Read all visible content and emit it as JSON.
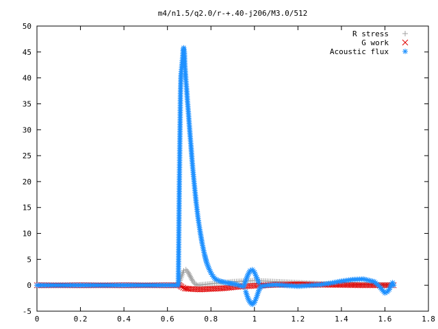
{
  "chart_data": {
    "type": "scatter",
    "title": "m4/n1.5/q2.0/r-+.40-j206/M3.0/512",
    "xlabel": "",
    "ylabel": "",
    "xlim": [
      0,
      1.8
    ],
    "ylim": [
      -5,
      50
    ],
    "xticks": [
      "0",
      "0.2",
      "0.4",
      "0.6",
      "0.8",
      "1",
      "1.2",
      "1.4",
      "1.6",
      "1.8"
    ],
    "yticks": [
      "-5",
      "0",
      "5",
      "10",
      "15",
      "20",
      "25",
      "30",
      "35",
      "40",
      "45",
      "50"
    ],
    "grid": false,
    "legend_position": "top-right",
    "series": [
      {
        "name": "R stress",
        "marker": "plus",
        "color": "#a0a0a0",
        "points": [
          [
            0.0,
            0.0
          ],
          [
            0.1,
            0.0
          ],
          [
            0.2,
            0.0
          ],
          [
            0.3,
            0.0
          ],
          [
            0.4,
            0.0
          ],
          [
            0.5,
            0.0
          ],
          [
            0.6,
            0.0
          ],
          [
            0.64,
            0.0
          ],
          [
            0.655,
            0.6
          ],
          [
            0.665,
            1.8
          ],
          [
            0.675,
            2.8
          ],
          [
            0.685,
            3.0
          ],
          [
            0.695,
            2.5
          ],
          [
            0.705,
            1.7
          ],
          [
            0.715,
            0.9
          ],
          [
            0.725,
            0.3
          ],
          [
            0.74,
            0.0
          ],
          [
            0.76,
            0.1
          ],
          [
            0.8,
            0.3
          ],
          [
            0.85,
            0.5
          ],
          [
            0.9,
            0.7
          ],
          [
            0.95,
            0.8
          ],
          [
            1.0,
            0.9
          ],
          [
            1.05,
            0.8
          ],
          [
            1.1,
            0.7
          ],
          [
            1.2,
            0.5
          ],
          [
            1.3,
            0.3
          ],
          [
            1.4,
            0.2
          ],
          [
            1.5,
            0.1
          ],
          [
            1.6,
            0.05
          ],
          [
            1.64,
            0.0
          ]
        ]
      },
      {
        "name": "G work",
        "marker": "cross",
        "color": "#e00000",
        "points": [
          [
            0.0,
            0.0
          ],
          [
            0.2,
            0.0
          ],
          [
            0.4,
            0.0
          ],
          [
            0.6,
            0.0
          ],
          [
            0.655,
            0.0
          ],
          [
            0.665,
            -0.3
          ],
          [
            0.68,
            -0.6
          ],
          [
            0.7,
            -0.7
          ],
          [
            0.75,
            -0.8
          ],
          [
            0.8,
            -0.7
          ],
          [
            0.85,
            -0.6
          ],
          [
            0.9,
            -0.4
          ],
          [
            0.95,
            -0.2
          ],
          [
            1.0,
            -0.1
          ],
          [
            1.1,
            0.1
          ],
          [
            1.2,
            0.2
          ],
          [
            1.3,
            0.1
          ],
          [
            1.4,
            0.05
          ],
          [
            1.5,
            0.0
          ],
          [
            1.6,
            0.0
          ],
          [
            1.64,
            0.0
          ]
        ]
      },
      {
        "name": "Acoustic flux",
        "marker": "star",
        "color": "#1e90ff",
        "points": [
          [
            0.0,
            0.0
          ],
          [
            0.1,
            0.0
          ],
          [
            0.2,
            0.0
          ],
          [
            0.3,
            0.0
          ],
          [
            0.4,
            0.0
          ],
          [
            0.5,
            0.0
          ],
          [
            0.6,
            0.0
          ],
          [
            0.65,
            0.0
          ],
          [
            0.655,
            20.7
          ],
          [
            0.66,
            37.0
          ],
          [
            0.662,
            40.5
          ],
          [
            0.666,
            42.3
          ],
          [
            0.67,
            44.0
          ],
          [
            0.672,
            45.3
          ],
          [
            0.675,
            45.8
          ],
          [
            0.678,
            45.0
          ],
          [
            0.68,
            42.5
          ],
          [
            0.684,
            40.0
          ],
          [
            0.688,
            38.0
          ],
          [
            0.692,
            35.5
          ],
          [
            0.696,
            33.5
          ],
          [
            0.7,
            31.2
          ],
          [
            0.704,
            29.0
          ],
          [
            0.708,
            27.0
          ],
          [
            0.712,
            24.8
          ],
          [
            0.716,
            22.8
          ],
          [
            0.72,
            21.0
          ],
          [
            0.724,
            19.3
          ],
          [
            0.728,
            17.6
          ],
          [
            0.732,
            16.0
          ],
          [
            0.736,
            14.6
          ],
          [
            0.74,
            13.2
          ],
          [
            0.745,
            11.8
          ],
          [
            0.75,
            10.4
          ],
          [
            0.755,
            9.2
          ],
          [
            0.76,
            8.0
          ],
          [
            0.765,
            7.0
          ],
          [
            0.77,
            6.0
          ],
          [
            0.775,
            5.2
          ],
          [
            0.78,
            4.4
          ],
          [
            0.79,
            3.3
          ],
          [
            0.8,
            2.4
          ],
          [
            0.81,
            1.7
          ],
          [
            0.82,
            1.2
          ],
          [
            0.84,
            0.8
          ],
          [
            0.86,
            0.6
          ],
          [
            0.88,
            0.4
          ],
          [
            0.9,
            0.3
          ],
          [
            0.92,
            0.1
          ],
          [
            0.95,
            -0.3
          ],
          [
            0.96,
            0.9
          ],
          [
            0.97,
            2.0
          ],
          [
            0.98,
            2.8
          ],
          [
            0.99,
            3.0
          ],
          [
            1.0,
            2.5
          ],
          [
            1.01,
            1.5
          ],
          [
            1.02,
            0.5
          ],
          [
            0.96,
            -1.2
          ],
          [
            0.97,
            -2.5
          ],
          [
            0.98,
            -3.3
          ],
          [
            0.99,
            -3.7
          ],
          [
            1.0,
            -3.3
          ],
          [
            1.01,
            -2.3
          ],
          [
            1.02,
            -1.0
          ],
          [
            1.03,
            -0.2
          ],
          [
            1.06,
            0.0
          ],
          [
            1.1,
            0.1
          ],
          [
            1.2,
            -0.2
          ],
          [
            1.3,
            0.1
          ],
          [
            1.35,
            0.4
          ],
          [
            1.4,
            0.8
          ],
          [
            1.45,
            1.1
          ],
          [
            1.5,
            1.2
          ],
          [
            1.55,
            0.7
          ],
          [
            1.57,
            0.0
          ],
          [
            1.59,
            -1.0
          ],
          [
            1.6,
            -1.5
          ],
          [
            1.61,
            -1.3
          ],
          [
            1.62,
            -0.8
          ],
          [
            1.63,
            0.2
          ],
          [
            1.635,
            0.5
          ],
          [
            1.64,
            0.0
          ]
        ]
      }
    ]
  }
}
